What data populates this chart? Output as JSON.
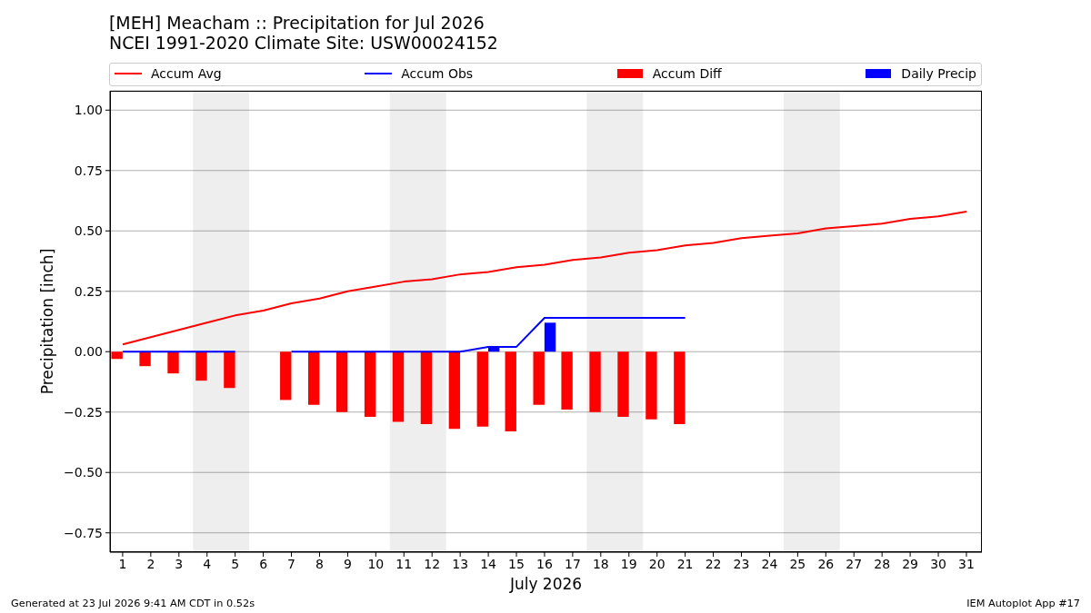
{
  "chart_data": {
    "type": "bar",
    "title": "[MEH] Meacham :: Precipitation for Jul 2026",
    "subtitle": "NCEI 1991-2020 Climate Site: USW00024152",
    "xlabel": "July 2026",
    "ylabel": "Precipitation [inch]",
    "x": [
      1,
      2,
      3,
      4,
      5,
      6,
      7,
      8,
      9,
      10,
      11,
      12,
      13,
      14,
      15,
      16,
      17,
      18,
      19,
      20,
      21,
      22,
      23,
      24,
      25,
      26,
      27,
      28,
      29,
      30,
      31
    ],
    "series": [
      {
        "name": "Accum Avg",
        "type": "line",
        "color": "#ff0000",
        "values": [
          0.03,
          0.06,
          0.09,
          0.12,
          0.15,
          0.17,
          0.2,
          0.22,
          0.25,
          0.27,
          0.29,
          0.3,
          0.32,
          0.33,
          0.35,
          0.36,
          0.38,
          0.39,
          0.41,
          0.42,
          0.44,
          0.45,
          0.47,
          0.48,
          0.49,
          0.51,
          0.52,
          0.53,
          0.55,
          0.56,
          0.58
        ]
      },
      {
        "name": "Accum Obs",
        "type": "line",
        "color": "#0000ff",
        "values": [
          0,
          0,
          0,
          0,
          0,
          null,
          0,
          0,
          0,
          0,
          0,
          0,
          0,
          0.02,
          0.02,
          0.14,
          0.14,
          0.14,
          0.14,
          0.14,
          0.14,
          null,
          null,
          null,
          null,
          null,
          null,
          null,
          null,
          null,
          null
        ]
      },
      {
        "name": "Accum Diff",
        "color": "#ff0000",
        "values": [
          -0.03,
          -0.06,
          -0.09,
          -0.12,
          -0.15,
          null,
          -0.2,
          -0.22,
          -0.25,
          -0.27,
          -0.29,
          -0.3,
          -0.32,
          -0.31,
          -0.33,
          -0.22,
          -0.24,
          -0.25,
          -0.27,
          -0.28,
          -0.3,
          null,
          null,
          null,
          null,
          null,
          null,
          null,
          null,
          null,
          null
        ]
      },
      {
        "name": "Daily Precip",
        "color": "#0000ff",
        "values": [
          0,
          0,
          0,
          0,
          0,
          null,
          0,
          0,
          0,
          0,
          0,
          0,
          0,
          0.02,
          0,
          0.12,
          0,
          0,
          0,
          0,
          0,
          null,
          null,
          null,
          null,
          null,
          null,
          null,
          null,
          null,
          null
        ]
      }
    ],
    "xlim": [
      0.55,
      31.55
    ],
    "xticks": [
      1,
      2,
      3,
      4,
      5,
      6,
      7,
      8,
      9,
      10,
      11,
      12,
      13,
      14,
      15,
      16,
      17,
      18,
      19,
      20,
      21,
      22,
      23,
      24,
      25,
      26,
      27,
      28,
      29,
      30,
      31
    ],
    "ylim": [
      -0.83,
      1.08
    ],
    "yticks": [
      {
        "value": -0.75,
        "label": "−0.75"
      },
      {
        "value": -0.5,
        "label": "−0.50"
      },
      {
        "value": -0.25,
        "label": "−0.25"
      },
      {
        "value": 0,
        "label": "0.00"
      },
      {
        "value": 0.25,
        "label": "0.25"
      },
      {
        "value": 0.5,
        "label": "0.50"
      },
      {
        "value": 0.75,
        "label": "0.75"
      },
      {
        "value": 1,
        "label": "1.00"
      }
    ],
    "bands": [
      {
        "axis": "x",
        "from": 3.5,
        "to": 5.5,
        "color": "#eeeeee"
      },
      {
        "axis": "x",
        "from": 10.5,
        "to": 12.5,
        "color": "#eeeeee"
      },
      {
        "axis": "x",
        "from": 17.5,
        "to": 19.5,
        "color": "#eeeeee"
      },
      {
        "axis": "x",
        "from": 24.5,
        "to": 26.5,
        "color": "#eeeeee"
      }
    ],
    "grid": "y",
    "legend": "top",
    "annotations": [
      "Generated at 23 Jul 2026 9:41 AM CDT in 0.52s",
      "IEM Autoplot App #17"
    ]
  }
}
